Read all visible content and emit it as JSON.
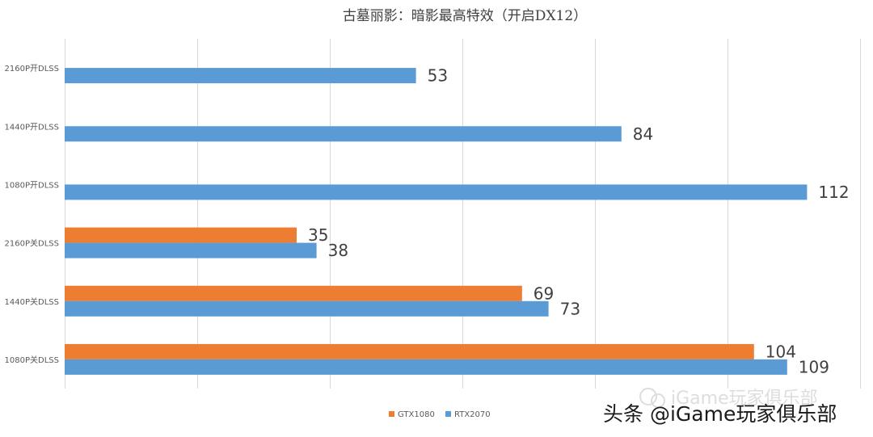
{
  "chart_data": {
    "type": "bar",
    "orientation": "horizontal",
    "title": "古墓丽影：暗影最高特效（开启DX12）",
    "categories": [
      "2160P开DLSS",
      "1440P开DLSS",
      "1080P开DLSS",
      "2160P关DLSS",
      "1440P关DLSS",
      "1080P关DLSS"
    ],
    "series": [
      {
        "name": "GTX1080",
        "color": "#ed7d31",
        "values": [
          null,
          null,
          null,
          35,
          69,
          104
        ]
      },
      {
        "name": "RTX2070",
        "color": "#5b9bd5",
        "values": [
          53,
          84,
          112,
          38,
          73,
          109
        ]
      }
    ],
    "xlim": [
      0,
      120
    ],
    "grid": true,
    "grid_step": 20,
    "legend": "bottom"
  },
  "watermark": {
    "text": "头条 @iGame玩家俱乐部",
    "faint_text": "iGame玩家俱乐部"
  }
}
